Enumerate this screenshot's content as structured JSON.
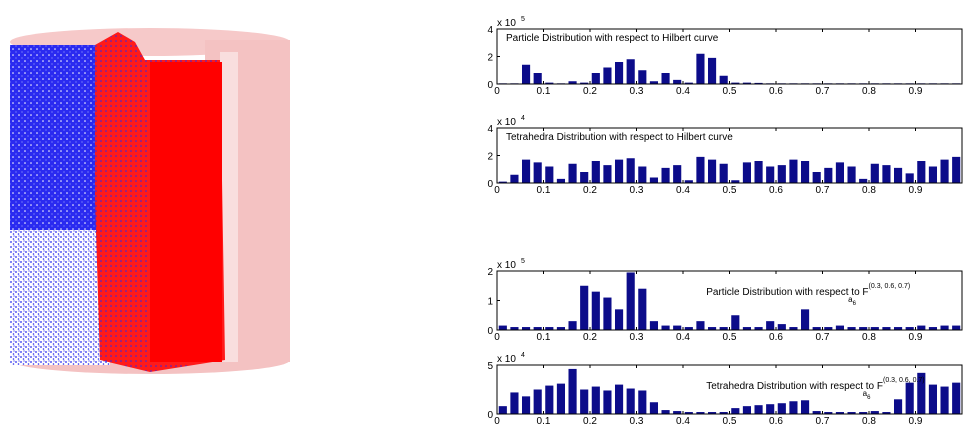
{
  "chart_data": [
    {
      "type": "histogram",
      "title": "Particle Distribution with respect to Hilbert curve",
      "y_multiplier": "x 10",
      "y_exponent": "5",
      "color": "#0c0c8a",
      "bins": [
        0,
        0.025,
        0.05,
        0.075,
        0.1,
        0.125,
        0.15,
        0.175,
        0.2,
        0.225,
        0.25,
        0.275,
        0.3,
        0.325,
        0.35,
        0.375,
        0.4,
        0.425,
        0.45,
        0.475,
        0.5,
        0.525,
        0.55,
        0.575,
        0.6,
        0.625,
        0.65,
        0.675,
        0.7,
        0.725,
        0.75,
        0.775,
        0.8,
        0.825,
        0.85,
        0.875,
        0.9,
        0.925,
        0.95,
        0.975,
        1
      ],
      "values": [
        0.05,
        0.05,
        1.4,
        0.8,
        0.1,
        0.05,
        0.2,
        0.1,
        0.8,
        1.2,
        1.6,
        1.8,
        1.0,
        0.2,
        0.8,
        0.3,
        0.1,
        2.2,
        1.9,
        0.6,
        0.1,
        0.1,
        0.08,
        0.05,
        0.05,
        0.05,
        0.05,
        0.05,
        0.05,
        0.05,
        0.05,
        0.05,
        0.05,
        0.05,
        0.05,
        0.05,
        0.05,
        0.05,
        0.05,
        0.05
      ],
      "xlim": [
        0,
        1
      ],
      "xticks": [
        0,
        0.1,
        0.2,
        0.3,
        0.4,
        0.5,
        0.6,
        0.7,
        0.8,
        0.9
      ],
      "ylim": [
        0,
        4
      ],
      "yticks": [
        0,
        2,
        4
      ]
    },
    {
      "type": "histogram",
      "title": "Tetrahedra Distribution with respect to Hilbert curve",
      "y_multiplier": "x 10",
      "y_exponent": "4",
      "color": "#0c0c8a",
      "bins": [
        0,
        0.025,
        0.05,
        0.075,
        0.1,
        0.125,
        0.15,
        0.175,
        0.2,
        0.225,
        0.25,
        0.275,
        0.3,
        0.325,
        0.35,
        0.375,
        0.4,
        0.425,
        0.45,
        0.475,
        0.5,
        0.525,
        0.55,
        0.575,
        0.6,
        0.625,
        0.65,
        0.675,
        0.7,
        0.725,
        0.75,
        0.775,
        0.8,
        0.825,
        0.85,
        0.875,
        0.9,
        0.925,
        0.95,
        0.975,
        1
      ],
      "values": [
        0.1,
        0.6,
        1.7,
        1.5,
        1.2,
        0.3,
        1.4,
        0.8,
        1.6,
        1.3,
        1.7,
        1.8,
        1.2,
        0.4,
        1.1,
        1.3,
        0.2,
        1.9,
        1.7,
        1.4,
        0.2,
        1.5,
        1.6,
        1.2,
        1.3,
        1.7,
        1.6,
        0.8,
        1.1,
        1.5,
        1.2,
        0.3,
        1.4,
        1.3,
        1.1,
        0.7,
        1.6,
        1.2,
        1.7,
        1.9
      ],
      "xlim": [
        0,
        1
      ],
      "xticks": [
        0,
        0.1,
        0.2,
        0.3,
        0.4,
        0.5,
        0.6,
        0.7,
        0.8,
        0.9
      ],
      "ylim": [
        0,
        4
      ],
      "yticks": [
        0,
        2,
        4
      ]
    },
    {
      "type": "histogram",
      "title": "Particle Distribution with respect to F",
      "title_subscript": "a",
      "title_subsubscript": "6",
      "title_superscript": "(0.3, 0.6, 0.7)",
      "y_multiplier": "x 10",
      "y_exponent": "5",
      "color": "#0c0c8a",
      "bins": [
        0,
        0.025,
        0.05,
        0.075,
        0.1,
        0.125,
        0.15,
        0.175,
        0.2,
        0.225,
        0.25,
        0.275,
        0.3,
        0.325,
        0.35,
        0.375,
        0.4,
        0.425,
        0.45,
        0.475,
        0.5,
        0.525,
        0.55,
        0.575,
        0.6,
        0.625,
        0.65,
        0.675,
        0.7,
        0.725,
        0.75,
        0.775,
        0.8,
        0.825,
        0.85,
        0.875,
        0.9,
        0.925,
        0.95,
        0.975,
        1
      ],
      "values": [
        0.15,
        0.1,
        0.1,
        0.1,
        0.1,
        0.1,
        0.3,
        1.5,
        1.3,
        1.1,
        0.7,
        1.95,
        1.4,
        0.3,
        0.15,
        0.15,
        0.1,
        0.3,
        0.1,
        0.1,
        0.5,
        0.1,
        0.1,
        0.3,
        0.2,
        0.1,
        0.7,
        0.1,
        0.1,
        0.15,
        0.1,
        0.1,
        0.1,
        0.1,
        0.1,
        0.1,
        0.15,
        0.1,
        0.15,
        0.15
      ],
      "xlim": [
        0,
        1
      ],
      "xticks": [
        0,
        0.1,
        0.2,
        0.3,
        0.4,
        0.5,
        0.6,
        0.7,
        0.8,
        0.9
      ],
      "ylim": [
        0,
        2
      ],
      "yticks": [
        0,
        1,
        2
      ]
    },
    {
      "type": "histogram",
      "title": "Tetrahedra Distribution with respect to F",
      "title_subscript": "a",
      "title_subsubscript": "6",
      "title_superscript": "(0.3, 0.6, 0.7)",
      "y_multiplier": "x 10",
      "y_exponent": "4",
      "color": "#0c0c8a",
      "bins": [
        0,
        0.025,
        0.05,
        0.075,
        0.1,
        0.125,
        0.15,
        0.175,
        0.2,
        0.225,
        0.25,
        0.275,
        0.3,
        0.325,
        0.35,
        0.375,
        0.4,
        0.425,
        0.45,
        0.475,
        0.5,
        0.525,
        0.55,
        0.575,
        0.6,
        0.625,
        0.65,
        0.675,
        0.7,
        0.725,
        0.75,
        0.775,
        0.8,
        0.825,
        0.85,
        0.875,
        0.9,
        0.925,
        0.95,
        0.975,
        1
      ],
      "values": [
        0.8,
        2.2,
        1.8,
        2.5,
        2.9,
        3.1,
        4.6,
        2.5,
        2.8,
        2.4,
        3.0,
        2.6,
        2.4,
        1.2,
        0.4,
        0.3,
        0.2,
        0.2,
        0.2,
        0.2,
        0.6,
        0.8,
        0.9,
        1.0,
        1.1,
        1.3,
        1.4,
        0.3,
        0.2,
        0.2,
        0.2,
        0.2,
        0.3,
        0.2,
        1.5,
        3.2,
        4.2,
        3.0,
        2.8,
        3.2
      ],
      "xlim": [
        0,
        1
      ],
      "xticks": [
        0,
        0.1,
        0.2,
        0.3,
        0.4,
        0.5,
        0.6,
        0.7,
        0.8,
        0.9
      ],
      "ylim": [
        0,
        5
      ],
      "yticks": [
        0,
        5
      ]
    }
  ]
}
